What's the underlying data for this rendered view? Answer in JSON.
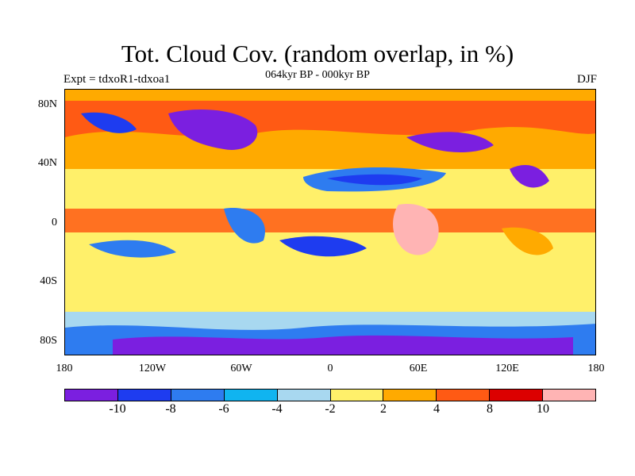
{
  "title": "Tot. Cloud Cov. (random overlap, in %)",
  "experiment": "Expt = tdxoR1-tdxoa1",
  "period": "064kyr BP - 000kyr BP",
  "season": "DJF",
  "y_axis_labels": [
    "80N",
    "40N",
    "0",
    "40S",
    "80S"
  ],
  "x_axis_labels": [
    "180",
    "120W",
    "60W",
    "0",
    "60E",
    "120E",
    "180"
  ],
  "legend": {
    "colors": [
      "#7b1fe0",
      "#1e3cf0",
      "#2e7cf0",
      "#10b4f0",
      "#a8d8f0",
      "#fff06a",
      "#ffaa00",
      "#ff5a14",
      "#dc0000",
      "#ffb4b4"
    ],
    "labels": [
      "-10",
      "-8",
      "-6",
      "-4",
      "-2",
      "2",
      "4",
      "8",
      "10"
    ]
  },
  "palette": {
    "purple": "#7b1fe0",
    "blue": "#1e3cf0",
    "lightblue": "#2e7cf0",
    "cyan": "#10b4f0",
    "paleblue": "#a8d8f0",
    "yellow": "#fff06a",
    "orange": "#ffaa00",
    "redorange": "#ff5a14",
    "red": "#dc0000",
    "pink": "#ffb4b4"
  }
}
